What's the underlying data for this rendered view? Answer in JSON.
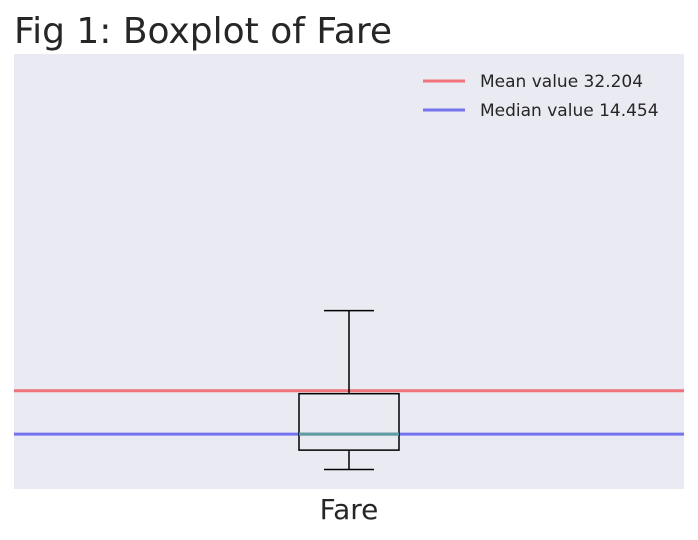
{
  "chart_data": {
    "type": "boxplot",
    "title": "Fig 1: Boxplot of Fare",
    "xlabel": "",
    "ylabel": "",
    "categories": [
      "Fare"
    ],
    "box": {
      "whisker_low": 0,
      "q1": 7.91,
      "median": 14.454,
      "q3": 31.0,
      "whisker_high": 65.0
    },
    "ylim": [
      -8,
      170
    ],
    "reference_lines": [
      {
        "name": "Mean value 32.204",
        "value": 32.204,
        "color": "#f0727a"
      },
      {
        "name": "Median value 14.454",
        "value": 14.454,
        "color": "#7474ee"
      }
    ],
    "grid": false,
    "legend_position": "top-right",
    "colors": {
      "plot_background": "#eaeaf2",
      "box_edge": "#000000",
      "median_line": "#5f9ea0"
    }
  }
}
